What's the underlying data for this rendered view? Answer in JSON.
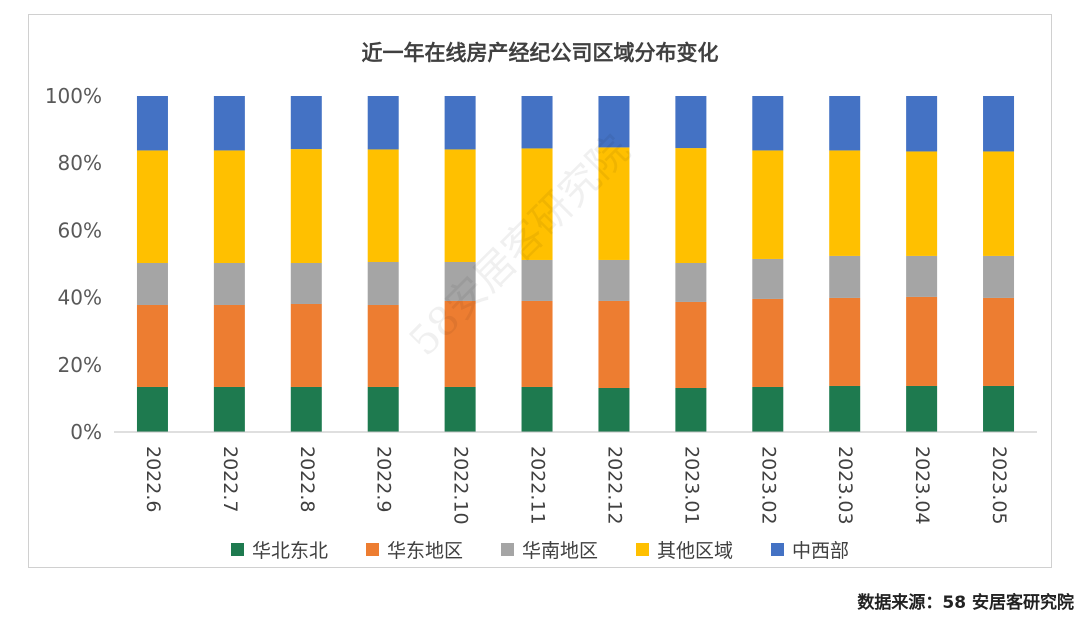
{
  "chart_data": {
    "type": "bar",
    "stacked": true,
    "title": "近一年在线房产经纪公司区域分布变化",
    "ylim": [
      0,
      100
    ],
    "y_ticks": [
      "0%",
      "20%",
      "40%",
      "60%",
      "80%",
      "100%"
    ],
    "categories": [
      "2022.6",
      "2022.7",
      "2022.8",
      "2022.9",
      "2022.10",
      "2022.11",
      "2022.12",
      "2023.01",
      "2023.02",
      "2023.03",
      "2023.04",
      "2023.05"
    ],
    "series": [
      {
        "name": "华北东北",
        "color": "#1e7a4f",
        "values": [
          13.4,
          13.4,
          13.4,
          13.4,
          13.4,
          13.4,
          13.1,
          13.1,
          13.4,
          13.7,
          13.7,
          13.7
        ]
      },
      {
        "name": "华东地区",
        "color": "#ed7d31",
        "values": [
          24.4,
          24.4,
          24.7,
          24.4,
          25.6,
          25.6,
          25.9,
          25.6,
          26.2,
          26.2,
          26.5,
          26.2
        ]
      },
      {
        "name": "华南地区",
        "color": "#a5a5a5",
        "values": [
          12.5,
          12.5,
          12.2,
          12.8,
          11.6,
          12.2,
          12.2,
          11.6,
          11.9,
          12.5,
          12.2,
          12.5
        ]
      },
      {
        "name": "其他区域",
        "color": "#ffc000",
        "values": [
          33.5,
          33.5,
          33.9,
          33.5,
          33.5,
          33.2,
          33.5,
          34.2,
          32.3,
          31.4,
          31.1,
          31.1
        ]
      },
      {
        "name": "中西部",
        "color": "#4472c4",
        "values": [
          16.2,
          16.2,
          15.8,
          15.9,
          15.9,
          15.6,
          15.3,
          15.5,
          16.2,
          16.2,
          16.5,
          16.5
        ]
      }
    ]
  },
  "source_text": "数据来源：58 安居客研究院",
  "watermark_text": "58安居客研究院"
}
